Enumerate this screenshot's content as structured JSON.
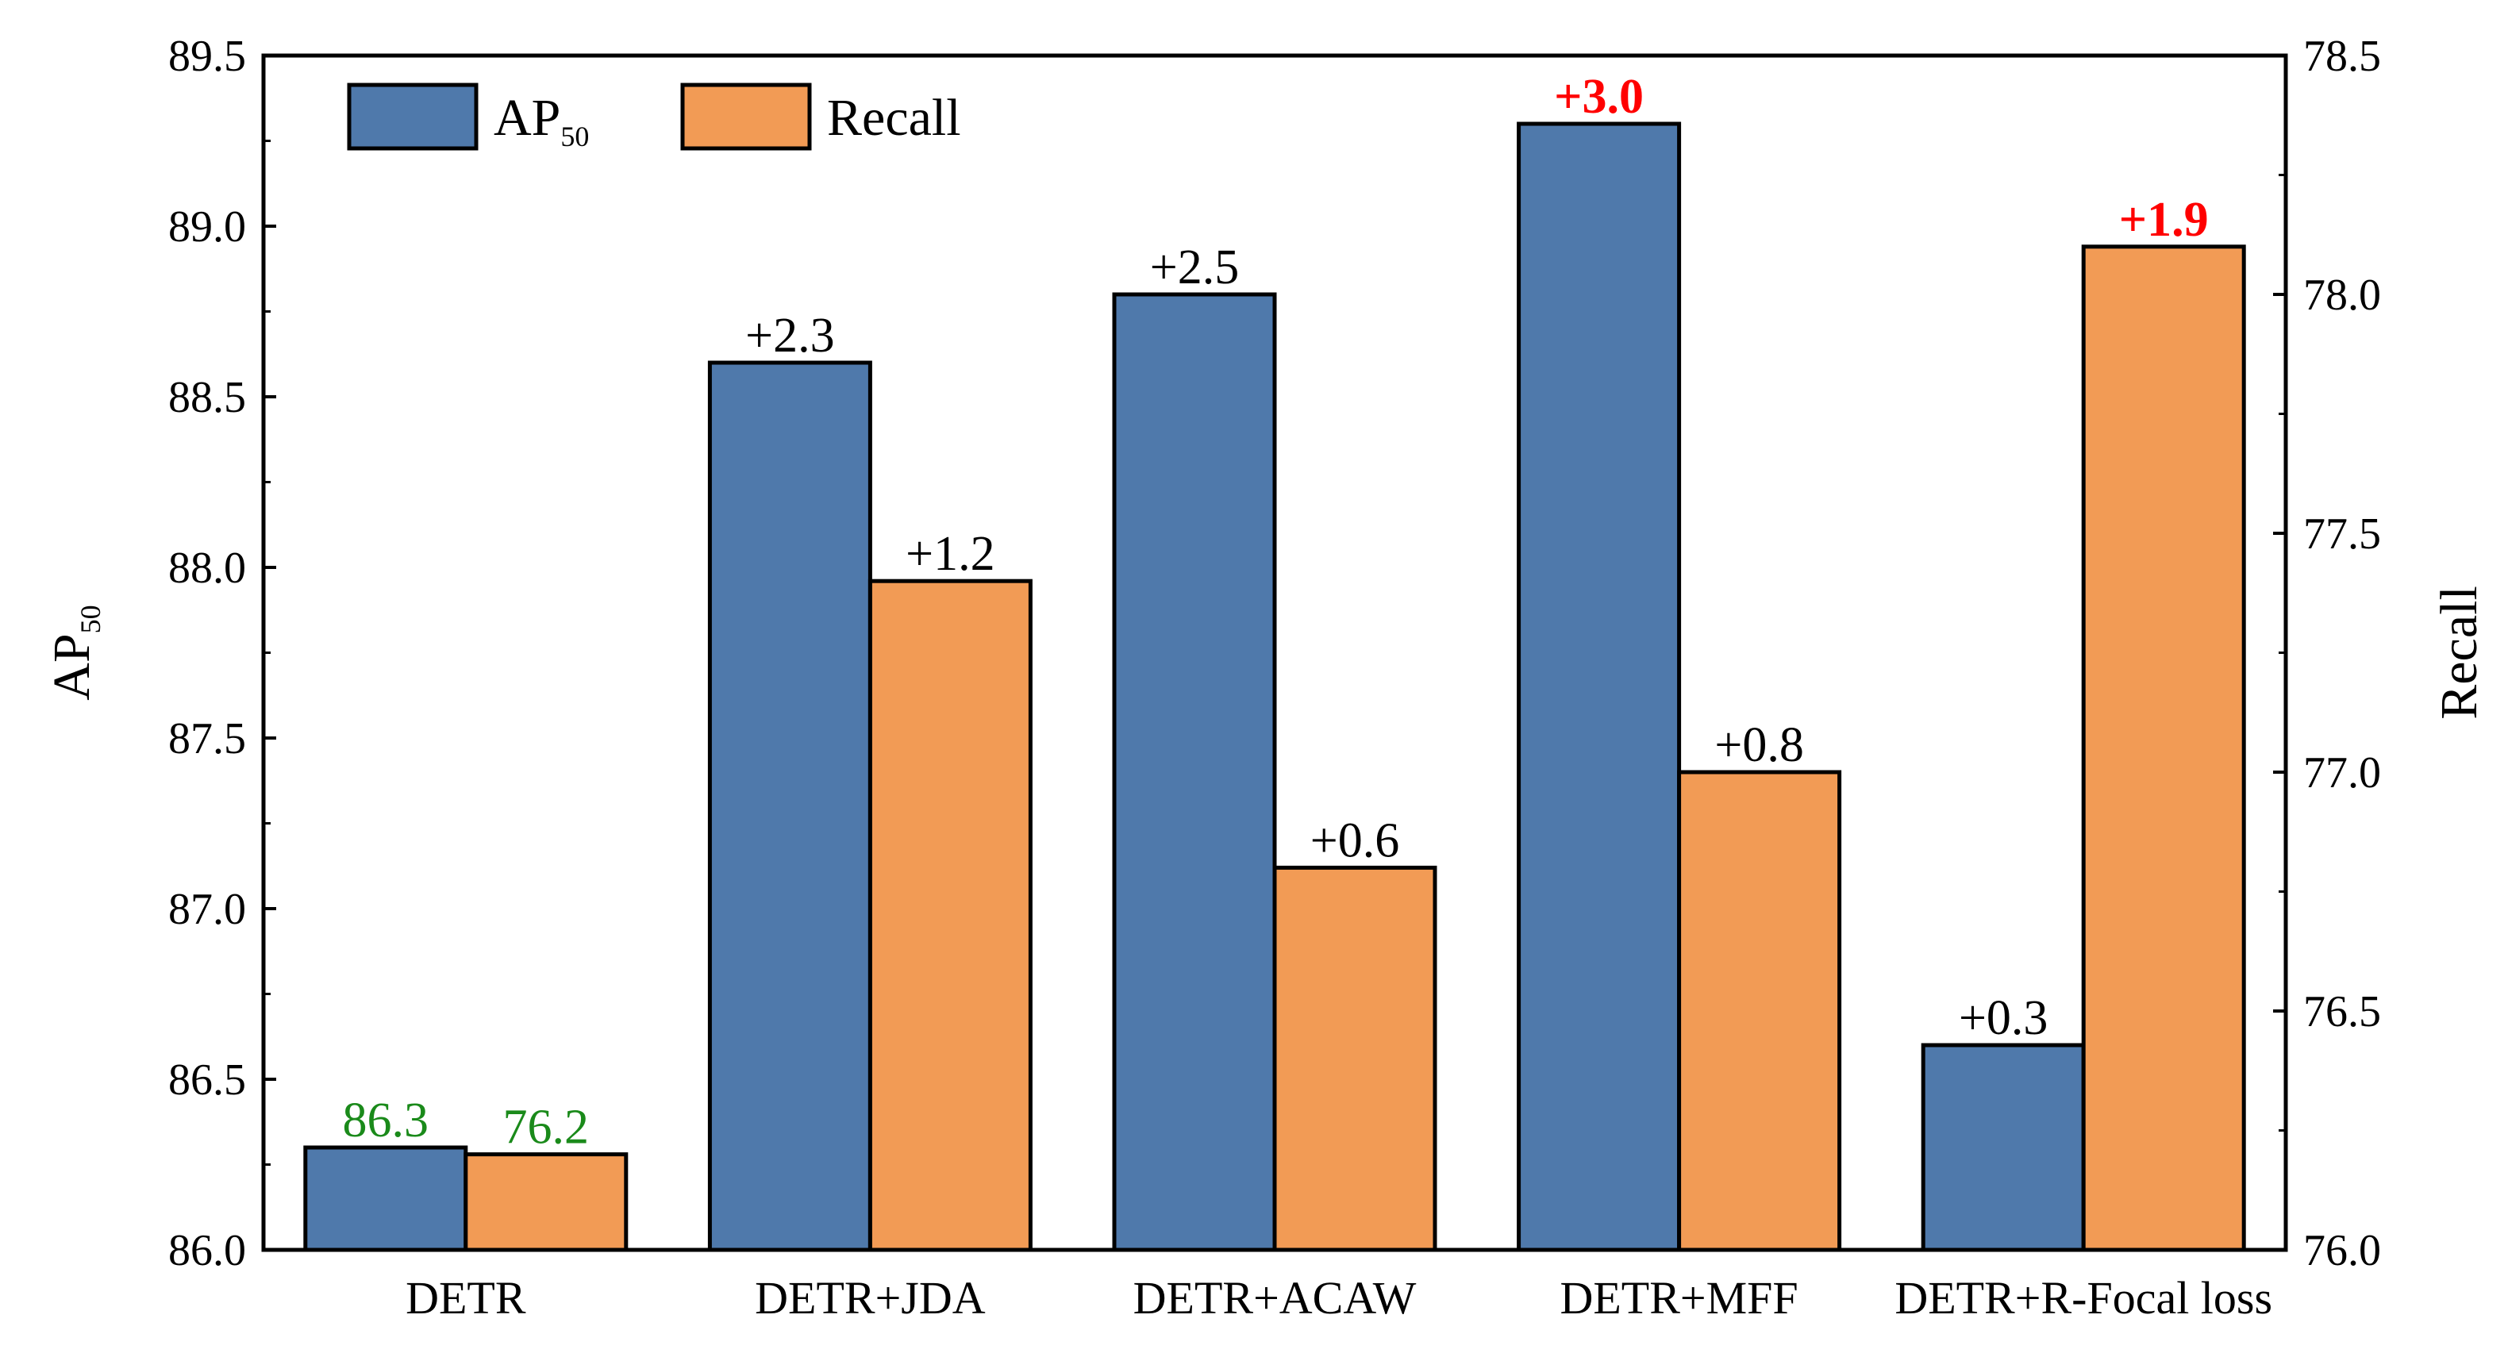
{
  "chart_data": {
    "type": "bar",
    "categories": [
      "DETR",
      "DETR+JDA",
      "DETR+ACAW",
      "DETR+MFF",
      "DETR+R-Focal loss"
    ],
    "series": [
      {
        "name": "AP50",
        "name_main": "AP",
        "name_sub": "50",
        "axis": "left",
        "color": "#4f79ab",
        "values": [
          86.3,
          88.6,
          88.8,
          89.3,
          86.6
        ],
        "labels": [
          "86.3",
          "+2.3",
          "+2.5",
          "+3.0",
          "+0.3"
        ],
        "label_styles": [
          "green",
          "normal",
          "normal",
          "red",
          "normal"
        ]
      },
      {
        "name": "Recall",
        "axis": "right",
        "color": "#f29b55",
        "values": [
          76.2,
          77.4,
          76.8,
          77.0,
          78.1
        ],
        "labels": [
          "76.2",
          "+1.2",
          "+0.6",
          "+0.8",
          "+1.9"
        ],
        "label_styles": [
          "green",
          "normal",
          "normal",
          "normal",
          "red"
        ]
      }
    ],
    "y_left": {
      "label_main": "AP",
      "label_sub": "50",
      "ylim": [
        86.0,
        89.5
      ],
      "ticks": [
        "86.0",
        "86.5",
        "87.0",
        "87.5",
        "88.0",
        "88.5",
        "89.0",
        "89.5"
      ]
    },
    "y_right": {
      "label": "Recall",
      "ylim": [
        76.0,
        78.5
      ],
      "ticks": [
        "76.0",
        "76.5",
        "77.0",
        "77.5",
        "78.0",
        "78.5"
      ]
    },
    "legend": {
      "position": "top-left",
      "entries": [
        {
          "main": "AP",
          "sub": "50",
          "color": "#4f79ab"
        },
        {
          "main": "Recall",
          "sub": "",
          "color": "#f29b55"
        }
      ]
    },
    "grid": false,
    "label_colors": {
      "green": "#1a8a1a",
      "red": "#ff0000"
    }
  }
}
